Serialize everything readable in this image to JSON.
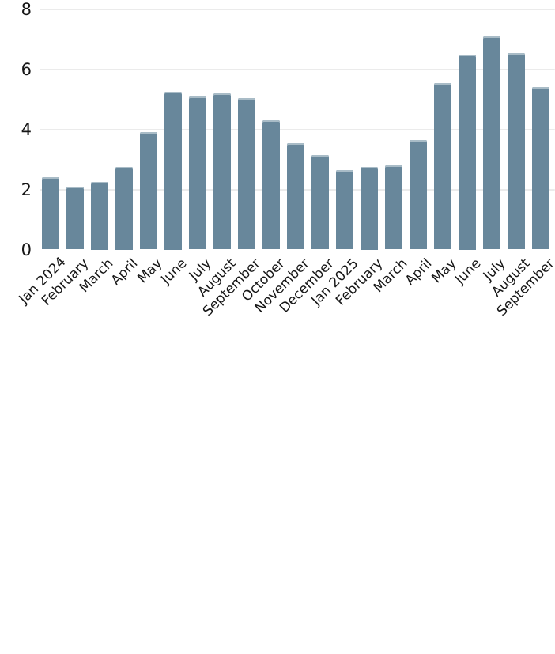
{
  "chart_data": {
    "type": "bar",
    "categories": [
      "Jan 2024",
      "February",
      "March",
      "April",
      "May",
      "June",
      "July",
      "August",
      "September",
      "October",
      "November",
      "December",
      "Jan 2025",
      "February",
      "March",
      "April",
      "May",
      "June",
      "July",
      "August",
      "September"
    ],
    "values": [
      2.4,
      2.1,
      2.25,
      2.75,
      3.9,
      5.25,
      5.1,
      5.2,
      5.05,
      4.3,
      3.55,
      3.15,
      2.65,
      2.75,
      2.8,
      3.65,
      5.55,
      6.5,
      7.1,
      6.55,
      5.4
    ],
    "ylim": [
      0,
      8
    ],
    "yticks": [
      0,
      2,
      4,
      6,
      8
    ],
    "ytick_labels": [
      "0",
      "2",
      "4",
      "6",
      "8"
    ],
    "grid": "horizontal gridlines at 2, 4, 6, 8 only",
    "legend": "none",
    "x_label_rotation_deg": -45,
    "colors": {
      "bar_fill": "#68879B",
      "bar_top_highlight": "#A9BCC7",
      "gridline": "#EBEBEB",
      "axis_text": "#161616",
      "background": "#FFFFFF"
    }
  }
}
